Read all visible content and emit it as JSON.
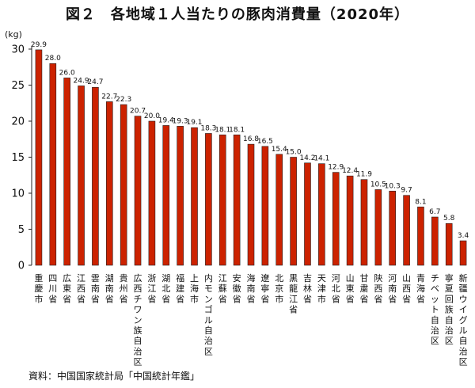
{
  "title": "図２　各地域１人当たりの豚肉消費量（2020年）",
  "source": "資料：中国国家統計局「中国統計年鑑」",
  "chart_data": {
    "type": "bar",
    "title": "図２　各地域１人当たりの豚肉消費量（2020年）",
    "ylabel": "(kg)",
    "ylim": [
      0,
      30
    ],
    "yticks": [
      0,
      5,
      10,
      15,
      20,
      25,
      30
    ],
    "grid": false,
    "bar_color": "#cc2200",
    "categories": [
      "重慶市",
      "四川省",
      "広東省",
      "江西省",
      "雲南省",
      "湖南省",
      "貴州省",
      "広西チワン族自治区",
      "浙江省",
      "湖北省",
      "福建省",
      "上海市",
      "内モンゴル自治区",
      "江蘇省",
      "安徽省",
      "海南省",
      "遼寧省",
      "北京市",
      "黒龍江省",
      "吉林省",
      "天津市",
      "河北省",
      "山東省",
      "甘粛省",
      "陝西省",
      "河南省",
      "山西省",
      "青海省",
      "チベット自治区",
      "寧夏回族自治区",
      "新疆ウイグル自治区"
    ],
    "values": [
      29.9,
      28.0,
      26.0,
      24.9,
      24.7,
      22.7,
      22.3,
      20.7,
      20.0,
      19.4,
      19.3,
      19.1,
      18.3,
      18.1,
      18.1,
      16.8,
      16.5,
      15.4,
      15.0,
      14.2,
      14.1,
      12.9,
      12.4,
      11.9,
      10.5,
      10.3,
      9.7,
      8.1,
      6.7,
      5.8,
      3.4
    ],
    "value_labels": [
      "29.9",
      "28.0",
      "26.0",
      "24.9",
      "24.7",
      "22.7",
      "22.3",
      "20.7",
      "20.0",
      "19.4",
      "19.3",
      "19.1",
      "18.3",
      "18.1",
      "18.1",
      "16.8",
      "16.5",
      "15.4",
      "15.0",
      "14.2",
      "14.1",
      "12.9",
      "12.4",
      "11.9",
      "10.5",
      "10.3",
      "9.7",
      "8.1",
      "6.7",
      "5.8",
      "3.4"
    ]
  }
}
